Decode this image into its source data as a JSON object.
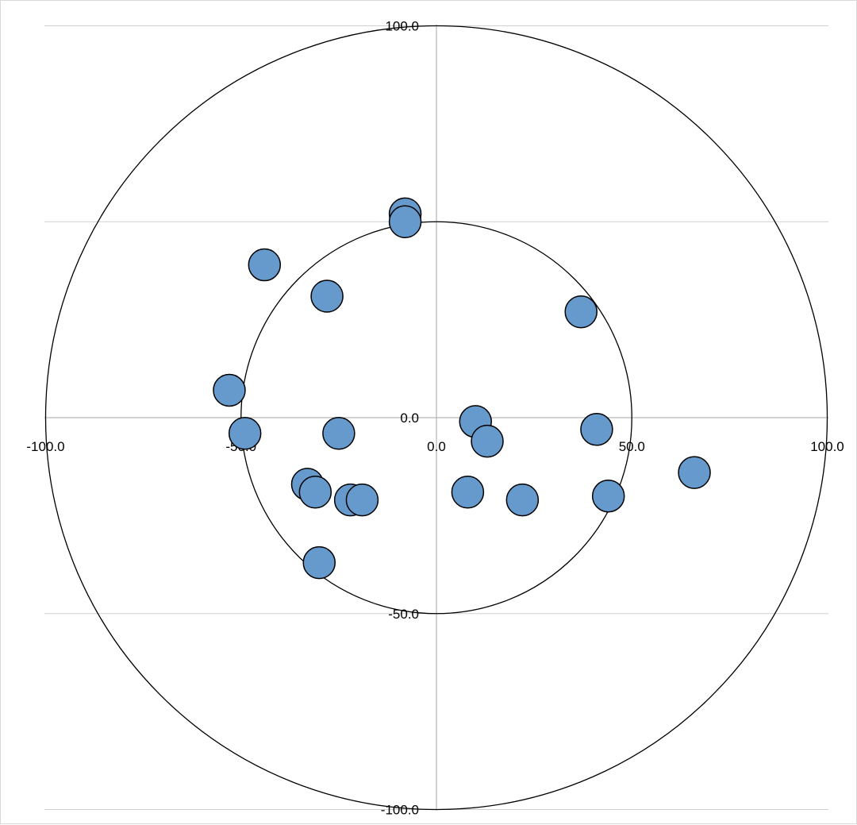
{
  "chart_data": {
    "type": "scatter",
    "title": "",
    "xlabel": "",
    "ylabel": "",
    "xlim": [
      -100,
      100
    ],
    "ylim": [
      -100,
      100
    ],
    "grid": true,
    "x_ticks": [
      "-100.0",
      "-50.0",
      "0.0",
      "50.0",
      "100.0"
    ],
    "y_ticks": [
      "100.0",
      "50.0",
      "0.0",
      "-50.0",
      "-100.0"
    ],
    "reference_circles_radius": [
      50,
      100
    ],
    "marker_color": "#6699cc",
    "series": [
      {
        "points": [
          {
            "x": -8,
            "y": 52
          },
          {
            "x": -8,
            "y": 50
          },
          {
            "x": -44,
            "y": 39
          },
          {
            "x": -28,
            "y": 31
          },
          {
            "x": 37,
            "y": 27
          },
          {
            "x": -53,
            "y": 7
          },
          {
            "x": -49,
            "y": -4
          },
          {
            "x": -25,
            "y": -4
          },
          {
            "x": 10,
            "y": -1
          },
          {
            "x": 13,
            "y": -6
          },
          {
            "x": 41,
            "y": -3
          },
          {
            "x": 66,
            "y": -14
          },
          {
            "x": -33,
            "y": -17
          },
          {
            "x": -31,
            "y": -19
          },
          {
            "x": -22,
            "y": -21
          },
          {
            "x": -19,
            "y": -21
          },
          {
            "x": 8,
            "y": -19
          },
          {
            "x": 22,
            "y": -21
          },
          {
            "x": 44,
            "y": -20
          },
          {
            "x": -30,
            "y": -37
          }
        ]
      }
    ]
  }
}
